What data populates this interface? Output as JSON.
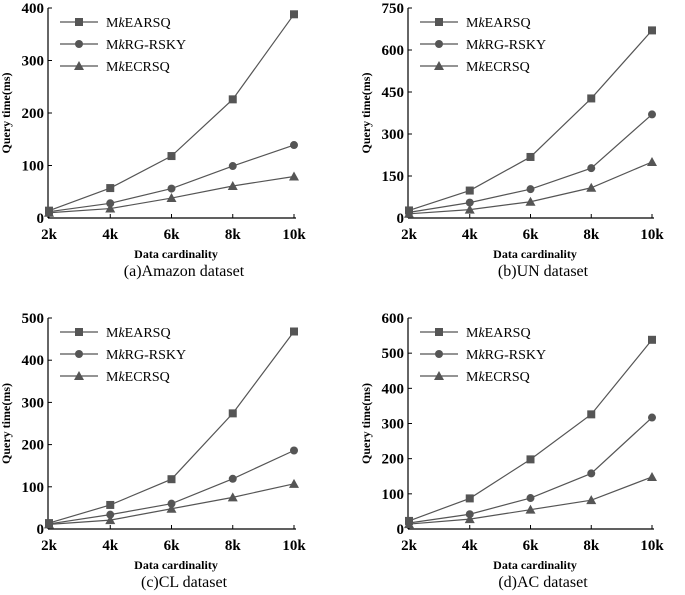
{
  "chart_data": [
    {
      "type": "line",
      "title": "(a)Amazon dataset",
      "xlabel": "Data cardinality",
      "ylabel": "Query time(ms)",
      "categories": [
        "2k",
        "4k",
        "6k",
        "8k",
        "10k"
      ],
      "yticks": [
        0,
        100,
        200,
        300,
        400
      ],
      "ylim": [
        0,
        400
      ],
      "legend_position": "top-left",
      "series": [
        {
          "name": "MkEARSQ",
          "marker": "square",
          "values": [
            14,
            57,
            118,
            226,
            388
          ]
        },
        {
          "name": "MkRG-RSKY",
          "marker": "circle",
          "values": [
            12,
            28,
            56,
            99,
            139
          ]
        },
        {
          "name": "MkECRSQ",
          "marker": "triangle",
          "values": [
            10,
            18,
            38,
            61,
            79
          ]
        }
      ]
    },
    {
      "type": "line",
      "title": "(b)UN dataset",
      "xlabel": "Data cardinality",
      "ylabel": "Query time(ms)",
      "categories": [
        "2k",
        "4k",
        "6k",
        "8k",
        "10k"
      ],
      "yticks": [
        0,
        150,
        300,
        450,
        600,
        750
      ],
      "ylim": [
        0,
        750
      ],
      "legend_position": "top-left",
      "series": [
        {
          "name": "MkEARSQ",
          "marker": "square",
          "values": [
            27,
            98,
            218,
            427,
            670
          ]
        },
        {
          "name": "MkRG-RSKY",
          "marker": "circle",
          "values": [
            20,
            55,
            103,
            178,
            370
          ]
        },
        {
          "name": "MkECRSQ",
          "marker": "triangle",
          "values": [
            15,
            30,
            58,
            108,
            200
          ]
        }
      ]
    },
    {
      "type": "line",
      "title": "(c)CL dataset",
      "xlabel": "Data cardinality",
      "ylabel": "Query time(ms)",
      "categories": [
        "2k",
        "4k",
        "6k",
        "8k",
        "10k"
      ],
      "yticks": [
        0,
        100,
        200,
        300,
        400,
        500
      ],
      "ylim": [
        0,
        500
      ],
      "legend_position": "top-left",
      "series": [
        {
          "name": "MkEARSQ",
          "marker": "square",
          "values": [
            14,
            57,
            118,
            274,
            468
          ]
        },
        {
          "name": "MkRG-RSKY",
          "marker": "circle",
          "values": [
            12,
            34,
            60,
            119,
            186
          ]
        },
        {
          "name": "MkECRSQ",
          "marker": "triangle",
          "values": [
            11,
            21,
            48,
            75,
            107
          ]
        }
      ]
    },
    {
      "type": "line",
      "title": "(d)AC dataset",
      "xlabel": "Data cardinality",
      "ylabel": "Query time(ms)",
      "categories": [
        "2k",
        "4k",
        "6k",
        "8k",
        "10k"
      ],
      "yticks": [
        0,
        100,
        200,
        300,
        400,
        500,
        600
      ],
      "ylim": [
        0,
        600
      ],
      "legend_position": "top-left",
      "series": [
        {
          "name": "MkEARSQ",
          "marker": "square",
          "values": [
            23,
            87,
            198,
            326,
            538
          ]
        },
        {
          "name": "MkRG-RSKY",
          "marker": "circle",
          "values": [
            17,
            42,
            88,
            158,
            317
          ]
        },
        {
          "name": "MkECRSQ",
          "marker": "triangle",
          "values": [
            14,
            28,
            55,
            82,
            148
          ]
        }
      ]
    }
  ]
}
